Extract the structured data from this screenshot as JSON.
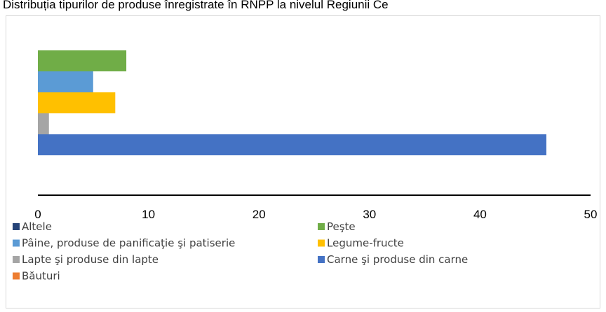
{
  "chart_data": {
    "type": "hbar",
    "title": "Distribuția tipurilor de produse înregistrate în RNPP la nivelul Regiunii Ce",
    "categories": [
      null
    ],
    "series": [
      {
        "name": "Altele",
        "color": "#264478",
        "values": [
          0
        ]
      },
      {
        "name": "Peşte",
        "color": "#70ad47",
        "values": [
          8
        ]
      },
      {
        "name": "Pâine, produse de panificaţie şi patiserie",
        "color": "#5b9bd5",
        "values": [
          5
        ]
      },
      {
        "name": "Legume-fructe",
        "color": "#ffc000",
        "values": [
          7
        ]
      },
      {
        "name": "Lapte şi produse din lapte",
        "color": "#a5a5a5",
        "values": [
          1
        ]
      },
      {
        "name": "Carne şi produse din carne",
        "color": "#4472c4",
        "values": [
          46
        ]
      },
      {
        "name": "Băuturi",
        "color": "#ed7d31",
        "values": [
          0
        ]
      }
    ],
    "xlim": [
      0,
      50
    ],
    "xticks": [
      0,
      10,
      20,
      30,
      40,
      50
    ],
    "grid": false,
    "legend": "bottom"
  }
}
